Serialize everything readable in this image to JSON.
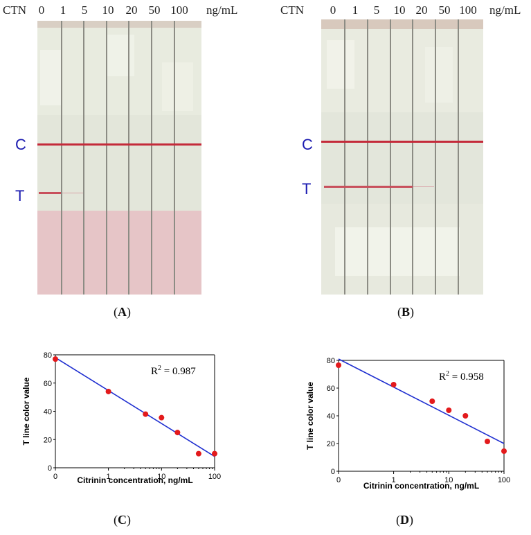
{
  "panels": {
    "A": {
      "label_open": "(",
      "label_letter": "A",
      "label_close": ")",
      "header_ctn": "CTN",
      "header_unit": "ng/mL",
      "concentrations": [
        "0",
        "1",
        "5",
        "10",
        "20",
        "50",
        "100"
      ],
      "control_label": "C",
      "test_label": "T",
      "colors": {
        "pad": "#e9ece1",
        "membrane": "#e7eadf",
        "sample_pad": "#e8c6c8",
        "line": "#c8303f"
      }
    },
    "B": {
      "label_open": "(",
      "label_letter": "B",
      "label_close": ")",
      "header_ctn": "CTN",
      "header_unit": "ng/mL",
      "concentrations": [
        "0",
        "1",
        "5",
        "10",
        "20",
        "50",
        "100"
      ],
      "control_label": "C",
      "test_label": "T",
      "colors": {
        "pad": "#e9ece1",
        "membrane": "#e4e7dc",
        "line": "#c8303f"
      }
    },
    "C": {
      "label_open": "(",
      "label_letter": "C",
      "label_close": ")"
    },
    "D": {
      "label_open": "(",
      "label_letter": "D",
      "label_close": ")"
    }
  },
  "chart_data": [
    {
      "type": "scatter",
      "panel": "C",
      "xlabel": "Citrinin concentration, ng/mL",
      "ylabel": "T line color value",
      "annotation_r": "R",
      "annotation_sup": "2",
      "annotation_value": " = 0.987",
      "x_ticks": [
        "0",
        "1",
        "10",
        "100"
      ],
      "y_ticks": [
        "0",
        "20",
        "40",
        "60",
        "80"
      ],
      "ylim": [
        0,
        80
      ],
      "x": [
        0,
        1,
        5,
        10,
        20,
        50,
        100
      ],
      "y": [
        77,
        54,
        38,
        35.5,
        25,
        10,
        10
      ],
      "fit": {
        "x": [
          0,
          100
        ],
        "y": [
          78,
          8
        ]
      },
      "colors": {
        "points": "#e31a1c",
        "fit": "#1f2fd0"
      }
    },
    {
      "type": "scatter",
      "panel": "D",
      "xlabel": "Citrinin concentration, ng/mL",
      "ylabel": "T line color value",
      "annotation_r": "R",
      "annotation_sup": "2",
      "annotation_value": " = 0.958",
      "x_ticks": [
        "0",
        "1",
        "10",
        "100"
      ],
      "y_ticks": [
        "0",
        "20",
        "40",
        "60",
        "80"
      ],
      "ylim": [
        0,
        80
      ],
      "x": [
        0,
        1,
        5,
        10,
        20,
        50,
        100
      ],
      "y": [
        76.5,
        62.5,
        50.5,
        44,
        40,
        21.5,
        14.5
      ],
      "fit": {
        "x": [
          0,
          100
        ],
        "y": [
          81,
          20
        ]
      },
      "colors": {
        "points": "#e31a1c",
        "fit": "#1f2fd0"
      }
    }
  ]
}
